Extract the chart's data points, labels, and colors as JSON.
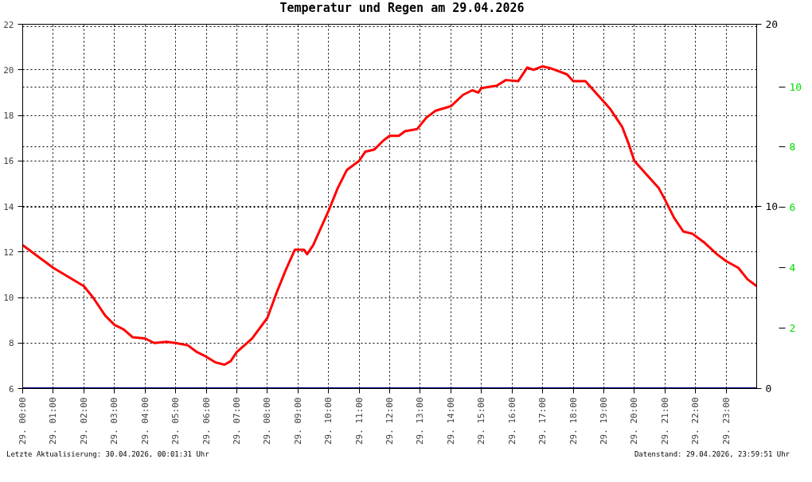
{
  "chart_data": {
    "type": "line",
    "title": "Temperatur und Regen am 29.04.2026",
    "xlim": [
      "2026-04-29T00:00",
      "2026-04-30T00:00"
    ],
    "xticks": [
      {
        "value": "2026-04-29T00:00",
        "label": "29. 00:00"
      },
      {
        "value": "2026-04-29T01:00",
        "label": "29. 01:00"
      },
      {
        "value": "2026-04-29T02:00",
        "label": "29. 02:00"
      },
      {
        "value": "2026-04-29T03:00",
        "label": "29. 03:00"
      },
      {
        "value": "2026-04-29T04:00",
        "label": "29. 04:00"
      },
      {
        "value": "2026-04-29T05:00",
        "label": "29. 05:00"
      },
      {
        "value": "2026-04-29T06:00",
        "label": "29. 06:00"
      },
      {
        "value": "2026-04-29T07:00",
        "label": "29. 07:00"
      },
      {
        "value": "2026-04-29T08:00",
        "label": "29. 08:00"
      },
      {
        "value": "2026-04-29T09:00",
        "label": "29. 09:00"
      },
      {
        "value": "2026-04-29T10:00",
        "label": "29. 10:00"
      },
      {
        "value": "2026-04-29T11:00",
        "label": "29. 11:00"
      },
      {
        "value": "2026-04-29T12:00",
        "label": "29. 12:00"
      },
      {
        "value": "2026-04-29T13:00",
        "label": "29. 13:00"
      },
      {
        "value": "2026-04-29T14:00",
        "label": "29. 14:00"
      },
      {
        "value": "2026-04-29T15:00",
        "label": "29. 15:00"
      },
      {
        "value": "2026-04-29T16:00",
        "label": "29. 16:00"
      },
      {
        "value": "2026-04-29T17:00",
        "label": "29. 17:00"
      },
      {
        "value": "2026-04-29T18:00",
        "label": "29. 18:00"
      },
      {
        "value": "2026-04-29T19:00",
        "label": "29. 19:00"
      },
      {
        "value": "2026-04-29T20:00",
        "label": "29. 20:00"
      },
      {
        "value": "2026-04-29T21:00",
        "label": "29. 21:00"
      },
      {
        "value": "2026-04-29T22:00",
        "label": "29. 22:00"
      },
      {
        "value": "2026-04-29T23:00",
        "label": "29. 23:00"
      }
    ],
    "ylim": [
      6,
      22
    ],
    "yticks": [
      6,
      8,
      10,
      12,
      14,
      16,
      18,
      20,
      22
    ],
    "y2lim": [
      0,
      20
    ],
    "y2ticks": [
      0,
      10,
      20
    ],
    "y3lim": [
      0,
      12.07
    ],
    "y3ticks": [
      2,
      4,
      6,
      8,
      10
    ],
    "grid": true,
    "annotations": [
      "Letzte Aktualisierung: 30.04.2026, 00:01:31 Uhr",
      "Datenstand: 29.04.2026, 23:59:51 Uhr"
    ],
    "series": [
      {
        "color": "#ff0000",
        "x": [
          "2026-04-29T00:00",
          "2026-04-29T01:00",
          "2026-04-29T01:30",
          "2026-04-29T02:00",
          "2026-04-29T02:18",
          "2026-04-29T02:42",
          "2026-04-29T03:00",
          "2026-04-29T03:18",
          "2026-04-29T03:36",
          "2026-04-29T04:00",
          "2026-04-29T04:18",
          "2026-04-29T04:42",
          "2026-04-29T05:00",
          "2026-04-29T05:24",
          "2026-04-29T05:42",
          "2026-04-29T06:00",
          "2026-04-29T06:18",
          "2026-04-29T06:36",
          "2026-04-29T06:48",
          "2026-04-29T07:00",
          "2026-04-29T07:30",
          "2026-04-29T08:00",
          "2026-04-29T08:18",
          "2026-04-29T08:36",
          "2026-04-29T08:54",
          "2026-04-29T09:12",
          "2026-04-29T09:18",
          "2026-04-29T09:30",
          "2026-04-29T09:42",
          "2026-04-29T10:00",
          "2026-04-29T10:18",
          "2026-04-29T10:36",
          "2026-04-29T11:00",
          "2026-04-29T11:12",
          "2026-04-29T11:30",
          "2026-04-29T11:48",
          "2026-04-29T12:00",
          "2026-04-29T12:18",
          "2026-04-29T12:30",
          "2026-04-29T12:54",
          "2026-04-29T13:12",
          "2026-04-29T13:30",
          "2026-04-29T14:00",
          "2026-04-29T14:24",
          "2026-04-29T14:42",
          "2026-04-29T14:54",
          "2026-04-29T15:00",
          "2026-04-29T15:30",
          "2026-04-29T15:48",
          "2026-04-29T16:12",
          "2026-04-29T16:30",
          "2026-04-29T16:42",
          "2026-04-29T17:00",
          "2026-04-29T17:18",
          "2026-04-29T17:48",
          "2026-04-29T18:00",
          "2026-04-29T18:24",
          "2026-04-29T18:48",
          "2026-04-29T19:12",
          "2026-04-29T19:36",
          "2026-04-29T19:48",
          "2026-04-29T20:00",
          "2026-04-29T20:24",
          "2026-04-29T20:48",
          "2026-04-29T21:00",
          "2026-04-29T21:18",
          "2026-04-29T21:36",
          "2026-04-29T21:54",
          "2026-04-29T22:18",
          "2026-04-29T22:42",
          "2026-04-29T23:00",
          "2026-04-29T23:24",
          "2026-04-29T23:42",
          "2026-04-30T00:00"
        ],
        "values": [
          12.3,
          11.3,
          10.9,
          10.5,
          10.0,
          9.2,
          8.8,
          8.6,
          8.25,
          8.2,
          8.0,
          8.05,
          8.0,
          7.9,
          7.6,
          7.4,
          7.15,
          7.05,
          7.2,
          7.6,
          8.2,
          9.1,
          10.2,
          11.2,
          12.1,
          12.1,
          11.9,
          12.3,
          12.9,
          13.8,
          14.8,
          15.6,
          16.0,
          16.4,
          16.5,
          16.9,
          17.1,
          17.1,
          17.3,
          17.4,
          17.9,
          18.2,
          18.4,
          18.9,
          19.1,
          19.0,
          19.2,
          19.3,
          19.55,
          19.5,
          20.1,
          20.0,
          20.15,
          20.05,
          19.8,
          19.5,
          19.5,
          18.9,
          18.3,
          17.5,
          16.8,
          16.0,
          15.4,
          14.8,
          14.3,
          13.5,
          12.9,
          12.8,
          12.4,
          11.9,
          11.6,
          11.3,
          10.8,
          10.5
        ]
      },
      {
        "color": "#000080",
        "axis": "y2",
        "x": [
          "2026-04-29T00:00",
          "2026-04-30T00:00"
        ],
        "values": [
          0,
          0
        ]
      }
    ]
  }
}
